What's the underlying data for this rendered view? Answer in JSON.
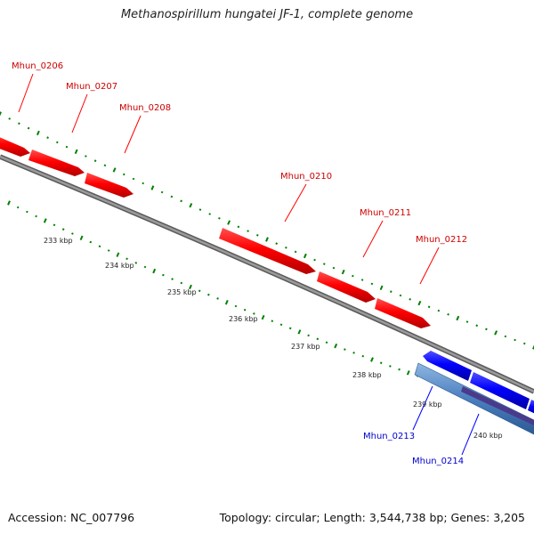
{
  "title": "Methanospirillum hungatei JF-1, complete genome",
  "footer": {
    "accession": "Accession: NC_007796",
    "summary": "Topology: circular; Length: 3,544,738 bp; Genes: 3,205"
  },
  "colors": {
    "forward_gene": "#ff0000",
    "forward_label": "#cc0000",
    "reverse_gene": "#0000ff",
    "reverse_label": "#0000cc",
    "backbone": "#808080",
    "ticks": "#008000",
    "feature_band": "#4a7fbf",
    "feature_band_dark": "#4a3a8c"
  },
  "forward_genes": [
    {
      "name": "Mhun_0206"
    },
    {
      "name": "Mhun_0207"
    },
    {
      "name": "Mhun_0208"
    },
    {
      "name": "Mhun_0210"
    },
    {
      "name": "Mhun_0211"
    },
    {
      "name": "Mhun_0212"
    }
  ],
  "reverse_genes": [
    {
      "name": "Mhun_0213"
    },
    {
      "name": "Mhun_0214"
    }
  ],
  "ruler": [
    {
      "label": "233 kbp"
    },
    {
      "label": "234 kbp"
    },
    {
      "label": "235 kbp"
    },
    {
      "label": "236 kbp"
    },
    {
      "label": "237 kbp"
    },
    {
      "label": "238 kbp"
    },
    {
      "label": "239 kbp"
    },
    {
      "label": "240 kbp"
    }
  ]
}
